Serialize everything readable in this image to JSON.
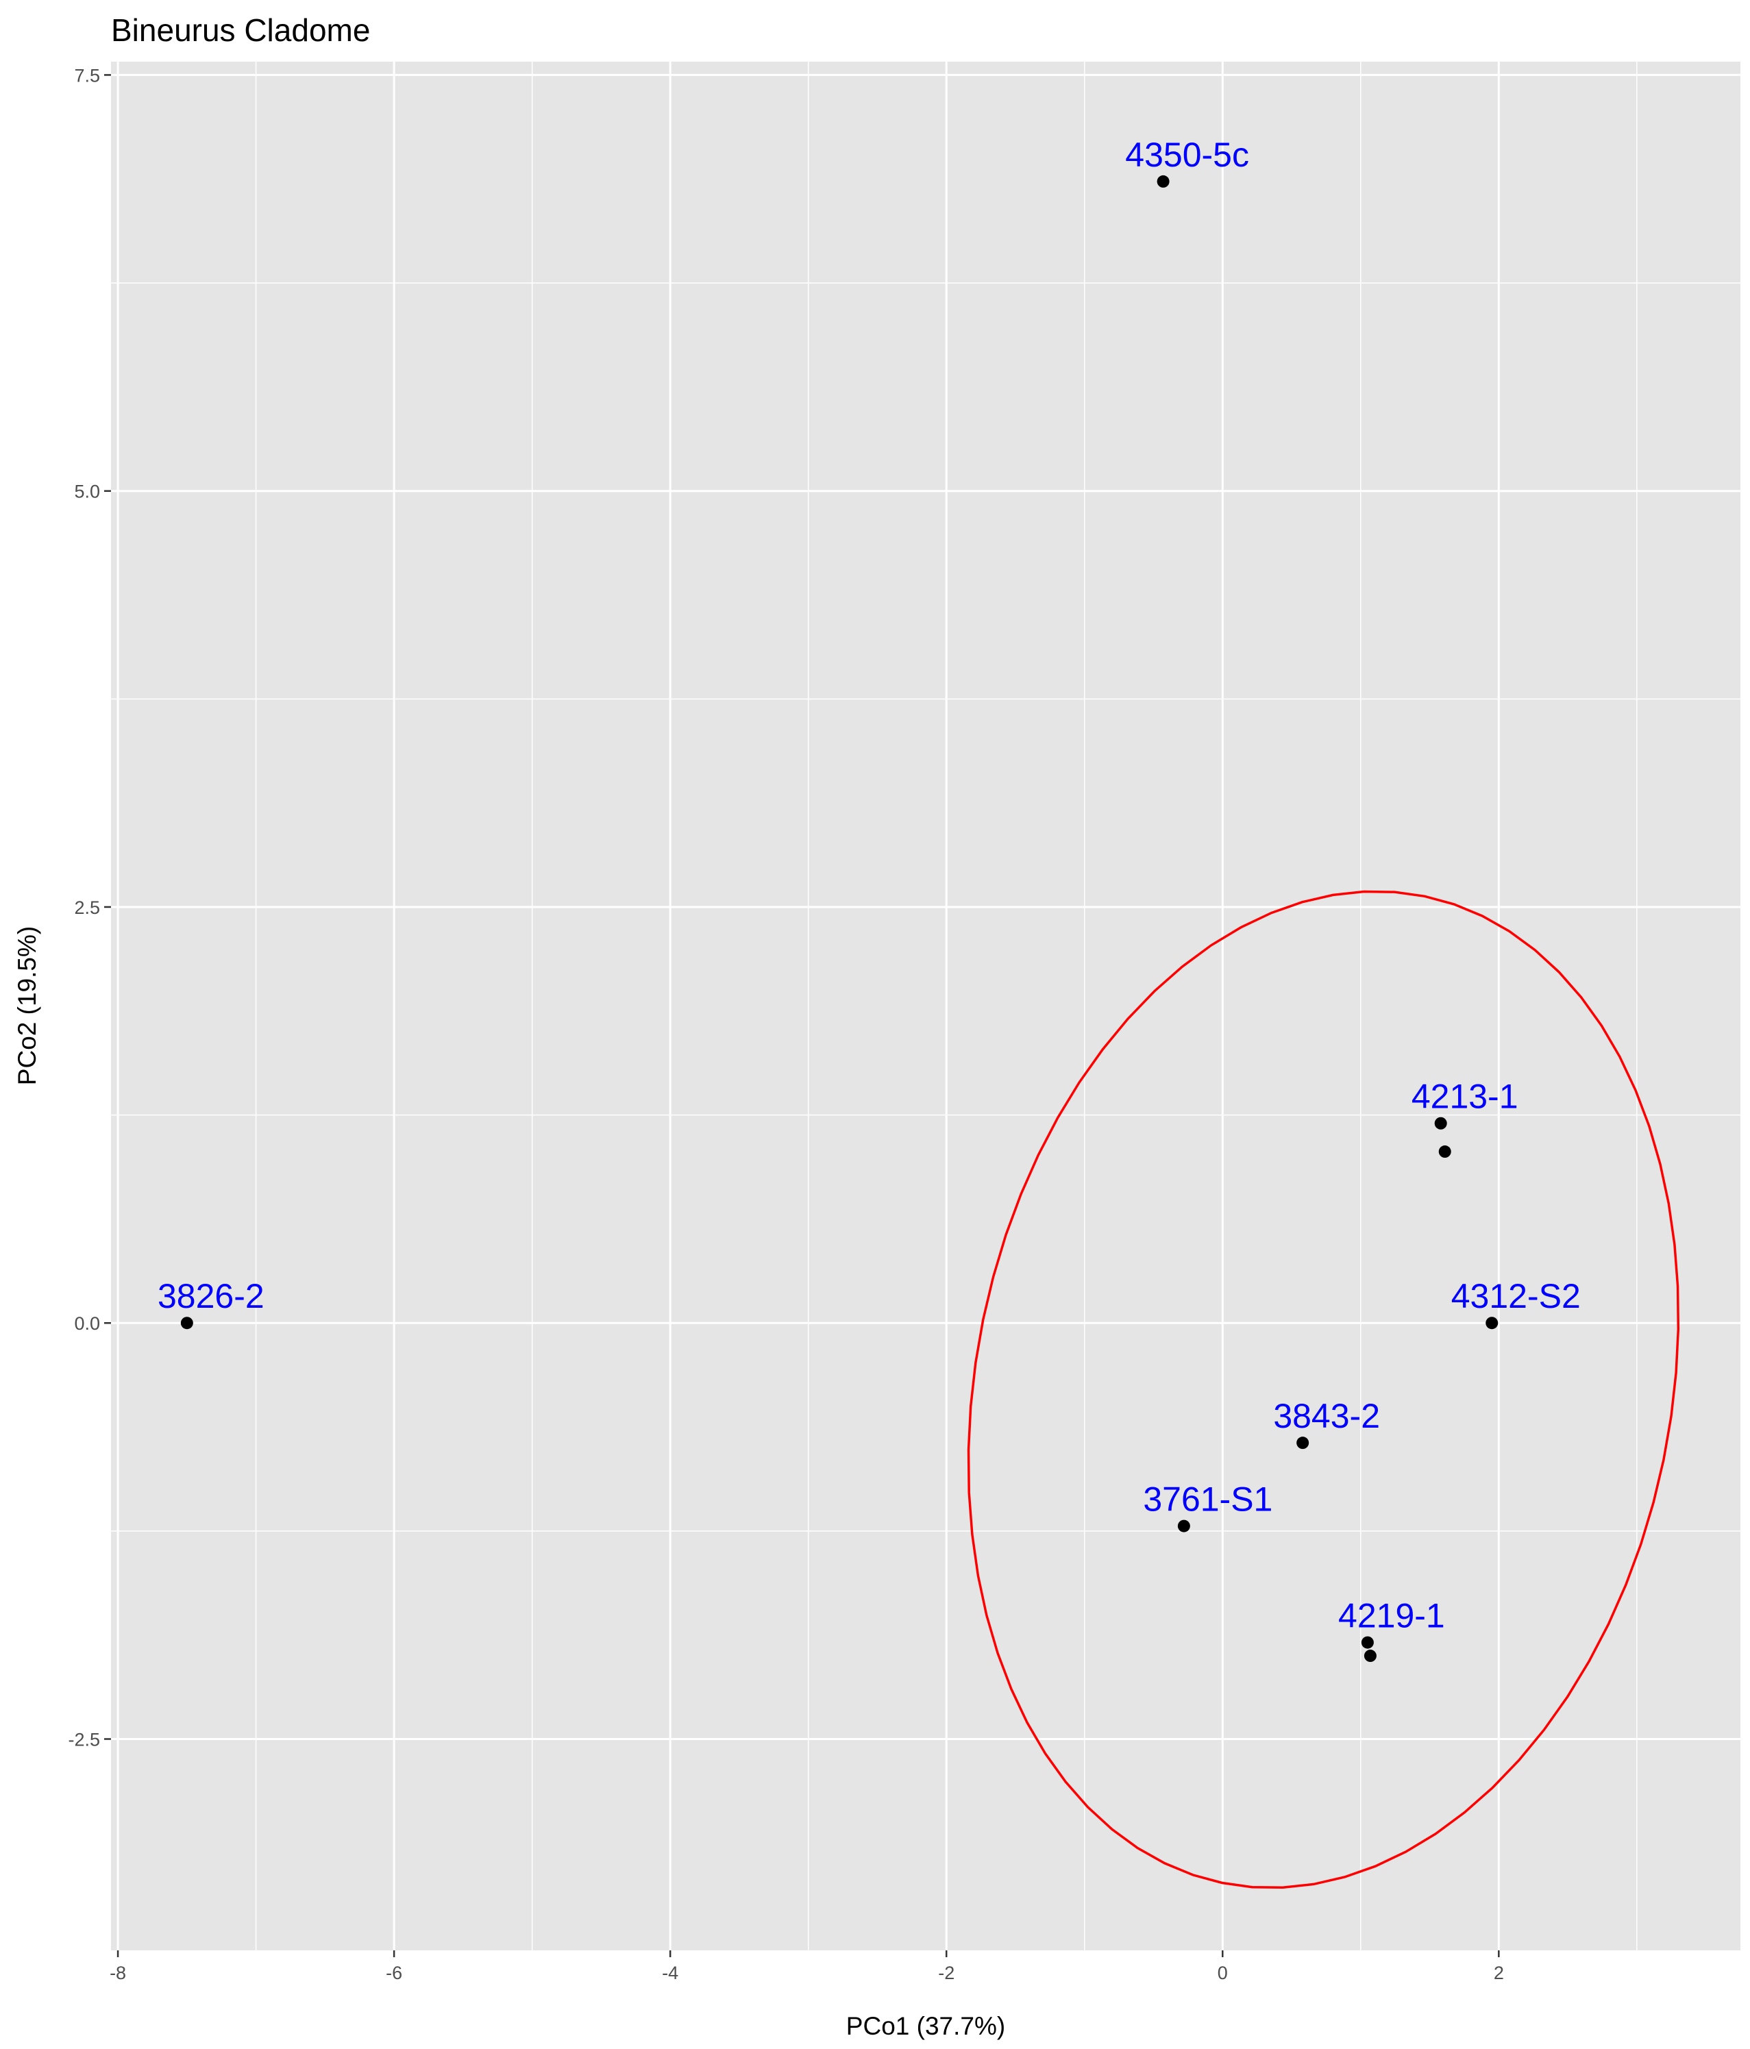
{
  "chart_data": {
    "type": "scatter",
    "title": "Bineurus Cladome",
    "xlabel": "PCo1 (37.7%)",
    "ylabel": "PCo2 (19.5%)",
    "xlim": [
      -8.05,
      3.75
    ],
    "ylim": [
      -3.77,
      7.58
    ],
    "x_ticks": [
      -8,
      -6,
      -4,
      -2,
      0,
      2
    ],
    "x_tick_labels": [
      "-8",
      "-6",
      "-4",
      "-2",
      "0",
      "2"
    ],
    "x_minor_ticks": [
      -7,
      -5,
      -3,
      -1,
      1,
      3
    ],
    "y_ticks": [
      -2.5,
      0,
      2.5,
      5,
      7.5
    ],
    "y_tick_labels": [
      "-2.5",
      "0.0",
      "2.5",
      "5.0",
      "7.5"
    ],
    "y_minor_ticks": [
      -1.25,
      1.25,
      3.75,
      6.25
    ],
    "grid": true,
    "legend": "none",
    "colors": {
      "panel": "#e5e5e5",
      "grid": "#ffffff",
      "point": "#000000",
      "label": "#0000ff",
      "ellipse": "#ff0000"
    },
    "points": [
      {
        "x": -7.5,
        "y": 0.0,
        "label": "3826-2"
      },
      {
        "x": -0.43,
        "y": 6.86,
        "label": "4350-5c"
      },
      {
        "x": 1.58,
        "y": 1.2,
        "label": "4213-1"
      },
      {
        "x": 1.61,
        "y": 1.03,
        "label": ""
      },
      {
        "x": 1.95,
        "y": 0.0,
        "label": "4312-S2"
      },
      {
        "x": 0.58,
        "y": -0.72,
        "label": "3843-2"
      },
      {
        "x": -0.28,
        "y": -1.22,
        "label": "3761-S1"
      },
      {
        "x": 1.05,
        "y": -1.92,
        "label": "4219-1"
      },
      {
        "x": 1.07,
        "y": -2.0,
        "label": ""
      }
    ],
    "ellipse": {
      "center": [
        0.73,
        -0.4
      ],
      "semi_axis_major": 3.07,
      "semi_axis_minor": 2.48,
      "major_axis_angle_deg": 68
    }
  }
}
